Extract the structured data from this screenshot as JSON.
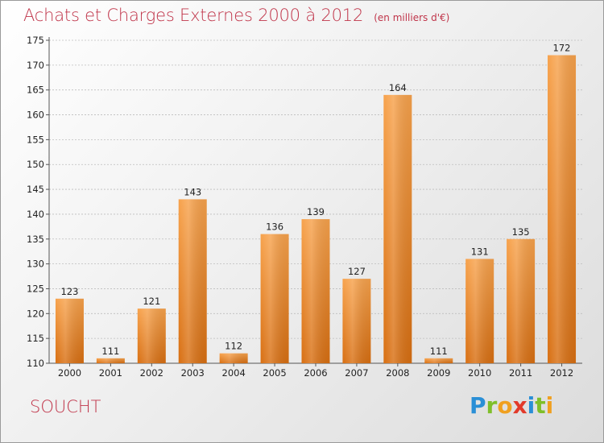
{
  "chart_data": {
    "type": "bar",
    "title": "Achats et Charges Externes 2000 à 2012",
    "subtitle": "(en milliers d'€)",
    "xlabel": "",
    "ylabel": "",
    "categories": [
      "2000",
      "2001",
      "2002",
      "2003",
      "2004",
      "2005",
      "2006",
      "2007",
      "2008",
      "2009",
      "2010",
      "2011",
      "2012"
    ],
    "values": [
      123,
      111,
      121,
      143,
      112,
      136,
      139,
      127,
      164,
      111,
      131,
      135,
      172
    ],
    "ylim": [
      110,
      175
    ],
    "yticks": [
      110,
      115,
      120,
      125,
      130,
      135,
      140,
      145,
      150,
      155,
      160,
      165,
      170,
      175
    ],
    "grid": true,
    "legend": "none",
    "bar_color": "#f08a2a"
  },
  "footer": {
    "commune": "SOUCHT",
    "logo_letters": [
      {
        "ch": "P",
        "color": "#2a8fd6"
      },
      {
        "ch": "r",
        "color": "#7fbf2a"
      },
      {
        "ch": "o",
        "color": "#f0a020"
      },
      {
        "ch": "x",
        "color": "#e23a2a"
      },
      {
        "ch": "i",
        "color": "#2a8fd6"
      },
      {
        "ch": "t",
        "color": "#7fbf2a"
      },
      {
        "ch": "i",
        "color": "#f0a020"
      }
    ]
  }
}
